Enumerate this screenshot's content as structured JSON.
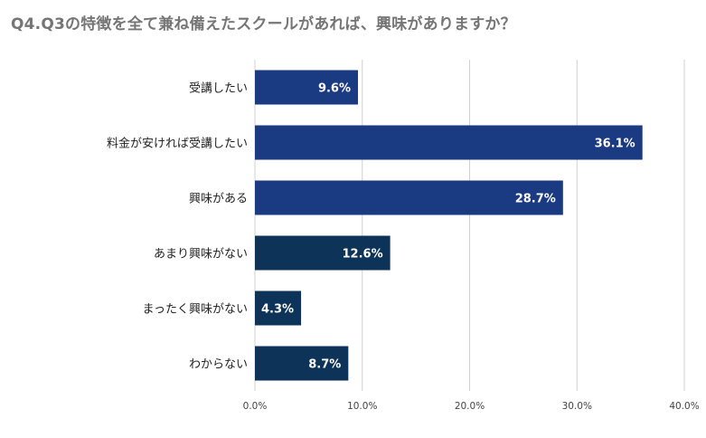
{
  "chart_data": {
    "type": "bar",
    "orientation": "horizontal",
    "title": "Q4.Q3の特徴を全て兼ね備えたスクールがあれば、興味がありますか？",
    "categories": [
      "受講したい",
      "料金が安ければ受講したい",
      "興味がある",
      "あまり興味がない",
      "まったく興味がない",
      "わからない"
    ],
    "values": [
      9.6,
      36.1,
      28.7,
      12.6,
      4.3,
      8.7
    ],
    "value_labels": [
      "9.6%",
      "36.1%",
      "28.7%",
      "12.6%",
      "4.3%",
      "8.7%"
    ],
    "bar_colors": [
      "#1a3a82",
      "#1a3a82",
      "#1a3a82",
      "#0e3358",
      "#0e3358",
      "#0e3358"
    ],
    "xlim": [
      0,
      40
    ],
    "x_ticks": [
      "0.0%",
      "10.0%",
      "20.0%",
      "30.0%",
      "40.0%"
    ],
    "x_tick_values": [
      0,
      10,
      20,
      30,
      40
    ],
    "grid": true,
    "legend": "none"
  }
}
